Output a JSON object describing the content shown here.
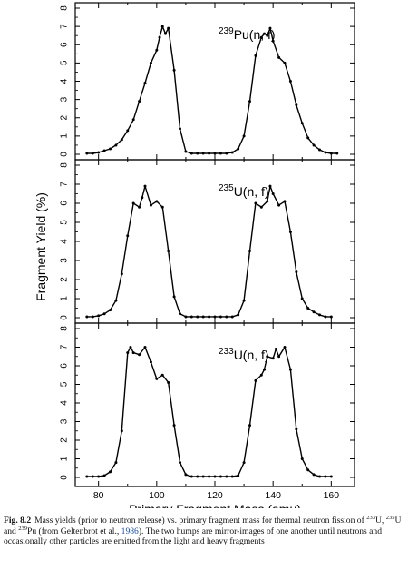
{
  "chart_data": [
    {
      "type": "line",
      "panel_label_mass": "239",
      "panel_label_rest": "Pu(n, f)",
      "xlim": [
        72,
        168
      ],
      "ylim": [
        0,
        8
      ],
      "y_ticks": [
        "0",
        "1",
        "2",
        "3",
        "4",
        "5",
        "6",
        "7",
        "8"
      ],
      "x": [
        76,
        78,
        80,
        82,
        84,
        86,
        88,
        90,
        92,
        94,
        96,
        98,
        100,
        101,
        102,
        103,
        104,
        106,
        108,
        110,
        112,
        114,
        116,
        118,
        120,
        122,
        124,
        126,
        128,
        130,
        132,
        134,
        136,
        137,
        138,
        139,
        140,
        142,
        144,
        146,
        148,
        150,
        152,
        154,
        156,
        158,
        160,
        162
      ],
      "y": [
        0.05,
        0.05,
        0.1,
        0.2,
        0.3,
        0.5,
        0.8,
        1.3,
        1.9,
        2.9,
        3.9,
        5.0,
        5.7,
        6.4,
        7.0,
        6.6,
        6.9,
        4.6,
        1.4,
        0.15,
        0.05,
        0.05,
        0.05,
        0.05,
        0.05,
        0.05,
        0.05,
        0.1,
        0.3,
        1.0,
        2.9,
        5.4,
        6.4,
        6.6,
        6.5,
        6.9,
        6.2,
        5.3,
        5.0,
        4.0,
        2.7,
        1.7,
        0.9,
        0.5,
        0.25,
        0.1,
        0.05,
        0.05
      ]
    },
    {
      "type": "line",
      "panel_label_mass": "235",
      "panel_label_rest": "U(n, f)",
      "xlim": [
        72,
        168
      ],
      "ylim": [
        0,
        8
      ],
      "y_ticks": [
        "0",
        "1",
        "2",
        "3",
        "4",
        "5",
        "6",
        "7",
        "8"
      ],
      "x": [
        76,
        78,
        80,
        82,
        84,
        86,
        88,
        90,
        92,
        94,
        95,
        96,
        98,
        100,
        102,
        104,
        106,
        108,
        110,
        112,
        114,
        116,
        118,
        120,
        122,
        124,
        126,
        128,
        130,
        132,
        134,
        136,
        138,
        139,
        140,
        142,
        144,
        146,
        148,
        150,
        152,
        154,
        156,
        158,
        160
      ],
      "y": [
        0.05,
        0.05,
        0.1,
        0.2,
        0.4,
        0.9,
        2.3,
        4.3,
        6.0,
        5.8,
        6.3,
        6.9,
        5.9,
        6.1,
        5.8,
        3.5,
        1.1,
        0.2,
        0.05,
        0.05,
        0.05,
        0.05,
        0.05,
        0.05,
        0.05,
        0.05,
        0.05,
        0.15,
        0.9,
        3.5,
        6.0,
        5.8,
        6.1,
        6.9,
        6.5,
        5.9,
        6.1,
        4.5,
        2.4,
        1.0,
        0.5,
        0.3,
        0.15,
        0.05,
        0.05
      ]
    },
    {
      "type": "line",
      "panel_label_mass": "233",
      "panel_label_rest": "U(n, f)",
      "xlim": [
        72,
        168
      ],
      "ylim": [
        0,
        8
      ],
      "y_ticks": [
        "0",
        "1",
        "2",
        "3",
        "4",
        "5",
        "6",
        "7",
        "8"
      ],
      "x_ticks": [
        "80",
        "100",
        "120",
        "140",
        "160"
      ],
      "xlabel": "Primary Fragment Mass (amu)",
      "x": [
        76,
        78,
        80,
        82,
        84,
        86,
        88,
        90,
        91,
        92,
        94,
        96,
        98,
        100,
        102,
        104,
        106,
        108,
        110,
        112,
        114,
        116,
        118,
        120,
        122,
        124,
        126,
        128,
        130,
        132,
        134,
        136,
        137,
        138,
        140,
        141,
        142,
        144,
        146,
        148,
        150,
        152,
        154,
        156,
        158,
        160
      ],
      "y": [
        0.05,
        0.05,
        0.05,
        0.1,
        0.3,
        0.8,
        2.5,
        6.7,
        7.0,
        6.7,
        6.6,
        7.0,
        6.2,
        5.3,
        5.5,
        5.1,
        2.8,
        0.8,
        0.15,
        0.05,
        0.05,
        0.05,
        0.05,
        0.05,
        0.05,
        0.05,
        0.05,
        0.1,
        0.8,
        2.8,
        5.2,
        5.5,
        5.8,
        6.5,
        6.4,
        6.9,
        6.5,
        7.0,
        5.8,
        2.6,
        1.0,
        0.4,
        0.15,
        0.05,
        0.05,
        0.05
      ]
    }
  ],
  "ylabel": "Fragment Yield (%)",
  "caption": {
    "label": "Fig. 8.2",
    "t1": "Mass yields (prior to neutron release) vs. primary fragment mass for thermal neutron fission of ",
    "s1": "233",
    "t2": "U, ",
    "s2": "235",
    "t3": "U and ",
    "s3": "239",
    "t4": "Pu (from Geltenbrot et al., ",
    "cite": "1986",
    "t5": "). The two humps are mirror-images of one another until neutrons and occasionally other particles are emitted from the light and heavy fragments"
  }
}
